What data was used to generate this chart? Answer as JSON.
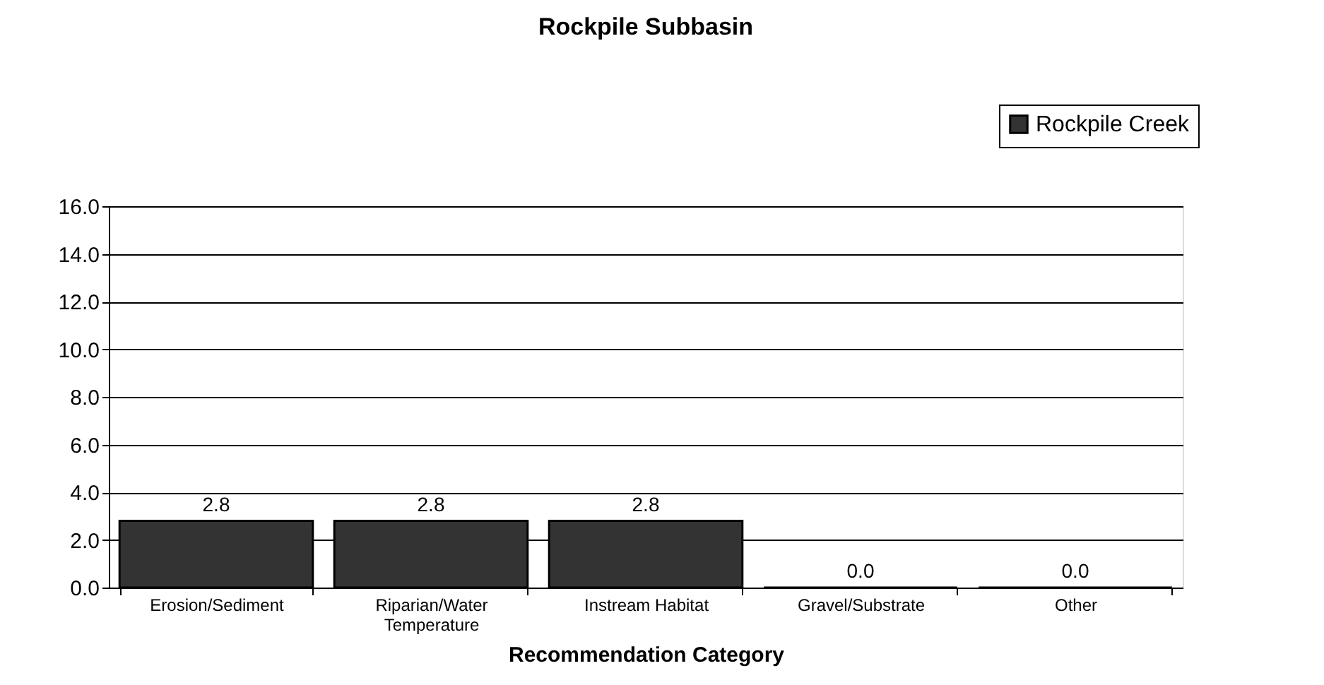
{
  "chart_data": {
    "type": "bar",
    "title": "Rockpile Subbasin",
    "xlabel": "Recommendation Category",
    "categories": [
      "Erosion/Sediment",
      "Riparian/Water Temperature",
      "Instream Habitat",
      "Gravel/Substrate",
      "Other"
    ],
    "series": [
      {
        "name": "Rockpile Creek",
        "color": "#333333",
        "values": [
          2.8,
          2.8,
          2.8,
          0.0,
          0.0
        ],
        "value_labels": [
          "2.8",
          "2.8",
          "2.8",
          "0.0",
          "0.0"
        ]
      }
    ],
    "ylim": [
      0,
      16
    ],
    "yticks": [
      {
        "value": 0,
        "label": "0.0"
      },
      {
        "value": 2,
        "label": "2.0"
      },
      {
        "value": 4,
        "label": "4.0"
      },
      {
        "value": 6,
        "label": "6.0"
      },
      {
        "value": 8,
        "label": "8.0"
      },
      {
        "value": 10,
        "label": "10.0"
      },
      {
        "value": 12,
        "label": "12.0"
      },
      {
        "value": 14,
        "label": "14.0"
      },
      {
        "value": 16,
        "label": "16.0"
      }
    ],
    "grid": "y",
    "legend": "top right"
  }
}
